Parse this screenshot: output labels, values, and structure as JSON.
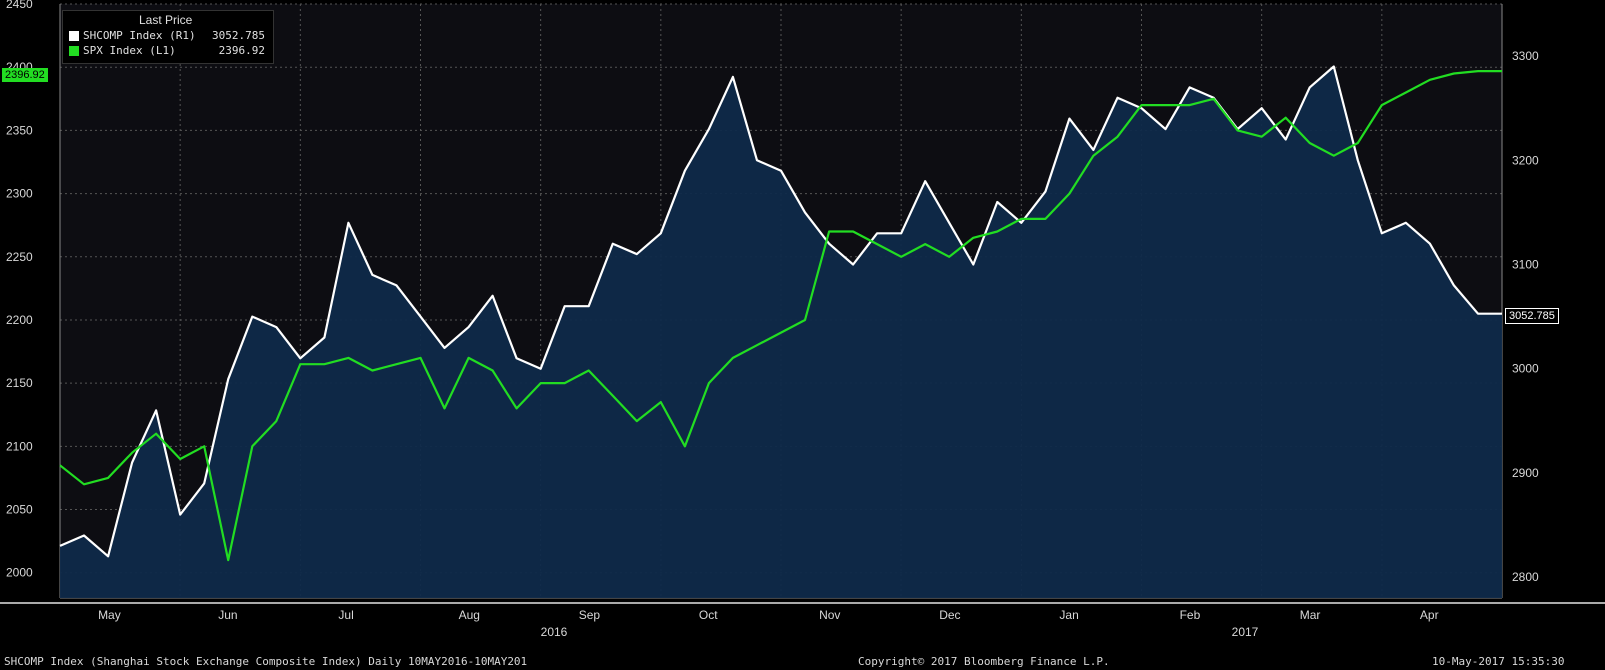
{
  "legend": {
    "title": "Last Price",
    "items": [
      {
        "name": "SHCOMP Index  (R1)",
        "value": "3052.785",
        "color": "#ffffff"
      },
      {
        "name": "SPX Index  (L1)",
        "value": "2396.92",
        "color": "#22dd22"
      }
    ]
  },
  "last_labels": {
    "left": "2396.92",
    "right": "3052.785"
  },
  "footer": {
    "left": "SHCOMP Index (Shanghai Stock Exchange Composite Index)  Daily 10MAY2016-10MAY201",
    "center": "Copyright© 2017 Bloomberg Finance L.P.",
    "right": "10-May-2017 15:35:30"
  },
  "chart_data": {
    "type": "line",
    "x_labels": [
      "May",
      "Jun",
      "Jul",
      "Aug",
      "Sep",
      "Oct",
      "Nov",
      "Dec",
      "Jan",
      "Feb",
      "Mar",
      "Apr"
    ],
    "year_labels": [
      "2016",
      "2017"
    ],
    "left_axis": {
      "ticks": [
        2000,
        2050,
        2100,
        2150,
        2200,
        2250,
        2300,
        2350,
        2400,
        2450
      ],
      "range": [
        1980,
        2450
      ]
    },
    "right_axis": {
      "ticks": [
        2800,
        2900,
        3000,
        3100,
        3200,
        3300
      ],
      "range": [
        2780,
        3350
      ]
    },
    "grid": true,
    "series": [
      {
        "name": "SHCOMP Index (R1)",
        "axis": "right",
        "color": "#ffffff",
        "fill": "#0f2a4a",
        "x": [
          0,
          0.2,
          0.4,
          0.6,
          0.8,
          1.0,
          1.2,
          1.4,
          1.6,
          1.8,
          2.0,
          2.2,
          2.4,
          2.6,
          2.8,
          3.0,
          3.2,
          3.4,
          3.6,
          3.8,
          4.0,
          4.2,
          4.4,
          4.6,
          4.8,
          5.0,
          5.2,
          5.4,
          5.6,
          5.8,
          6.0,
          6.2,
          6.4,
          6.6,
          6.8,
          7.0,
          7.2,
          7.4,
          7.6,
          7.8,
          8.0,
          8.2,
          8.4,
          8.6,
          8.8,
          9.0,
          9.2,
          9.4,
          9.6,
          9.8,
          10.0,
          10.2,
          10.4,
          10.6,
          10.8,
          11.0,
          11.2,
          11.4,
          11.6,
          11.8,
          12.0
        ],
        "values": [
          2830,
          2840,
          2820,
          2910,
          2960,
          2860,
          2890,
          2990,
          3050,
          3040,
          3010,
          3030,
          3140,
          3090,
          3080,
          3050,
          3020,
          3040,
          3070,
          3010,
          3000,
          3060,
          3060,
          3120,
          3110,
          3130,
          3190,
          3230,
          3280,
          3200,
          3190,
          3150,
          3120,
          3100,
          3130,
          3130,
          3180,
          3140,
          3100,
          3160,
          3140,
          3170,
          3240,
          3210,
          3260,
          3250,
          3230,
          3270,
          3260,
          3230,
          3250,
          3220,
          3270,
          3290,
          3200,
          3130,
          3140,
          3120,
          3080,
          3052.785,
          3052.785
        ],
        "last": 3052.785
      },
      {
        "name": "SPX Index (L1)",
        "axis": "left",
        "color": "#22dd22",
        "x": [
          0,
          0.2,
          0.4,
          0.6,
          0.8,
          1.0,
          1.2,
          1.4,
          1.6,
          1.8,
          2.0,
          2.2,
          2.4,
          2.6,
          2.8,
          3.0,
          3.2,
          3.4,
          3.6,
          3.8,
          4.0,
          4.2,
          4.4,
          4.6,
          4.8,
          5.0,
          5.2,
          5.4,
          5.6,
          5.8,
          6.0,
          6.2,
          6.4,
          6.6,
          6.8,
          7.0,
          7.2,
          7.4,
          7.6,
          7.8,
          8.0,
          8.2,
          8.4,
          8.6,
          8.8,
          9.0,
          9.2,
          9.4,
          9.6,
          9.8,
          10.0,
          10.2,
          10.4,
          10.6,
          10.8,
          11.0,
          11.2,
          11.4,
          11.6,
          11.8,
          12.0
        ],
        "values": [
          2085,
          2070,
          2075,
          2095,
          2110,
          2090,
          2100,
          2010,
          2100,
          2120,
          2165,
          2165,
          2170,
          2160,
          2165,
          2170,
          2130,
          2170,
          2160,
          2130,
          2150,
          2150,
          2160,
          2140,
          2120,
          2135,
          2100,
          2150,
          2170,
          2180,
          2190,
          2200,
          2270,
          2270,
          2260,
          2250,
          2260,
          2250,
          2265,
          2270,
          2280,
          2280,
          2300,
          2330,
          2345,
          2370,
          2370,
          2370,
          2375,
          2350,
          2345,
          2360,
          2340,
          2330,
          2340,
          2370,
          2380,
          2390,
          2395,
          2396.92,
          2396.92
        ],
        "last": 2396.92
      }
    ]
  }
}
